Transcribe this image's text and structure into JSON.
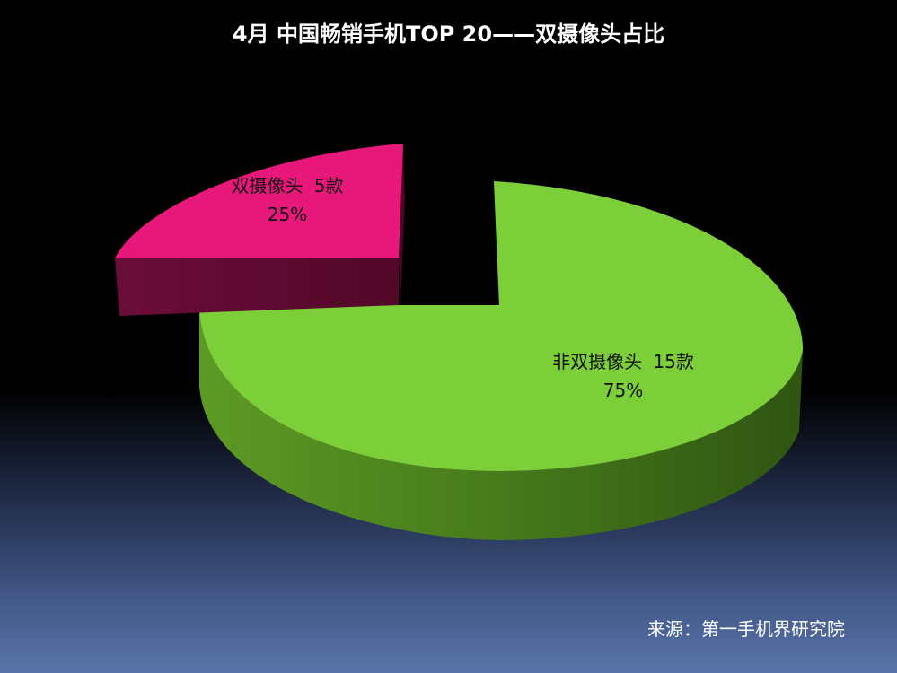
{
  "colors": {
    "dual_top": "#e8177a",
    "dual_side": "#5e0a32",
    "non_dual_top": "#7dcf3a",
    "non_dual_side": "#3f6f16"
  },
  "chart_data": {
    "type": "pie",
    "title": "4月 中国畅销手机TOP 20——双摄像头占比",
    "slices": [
      {
        "name": "双摄像头",
        "count": 5,
        "count_text": "5款",
        "percent": 25,
        "percent_text": "25%",
        "exploded": true
      },
      {
        "name": "非双摄像头",
        "count": 15,
        "count_text": "15款",
        "percent": 75,
        "percent_text": "75%",
        "exploded": false
      }
    ],
    "source": "来源：第一手机界研究院"
  }
}
